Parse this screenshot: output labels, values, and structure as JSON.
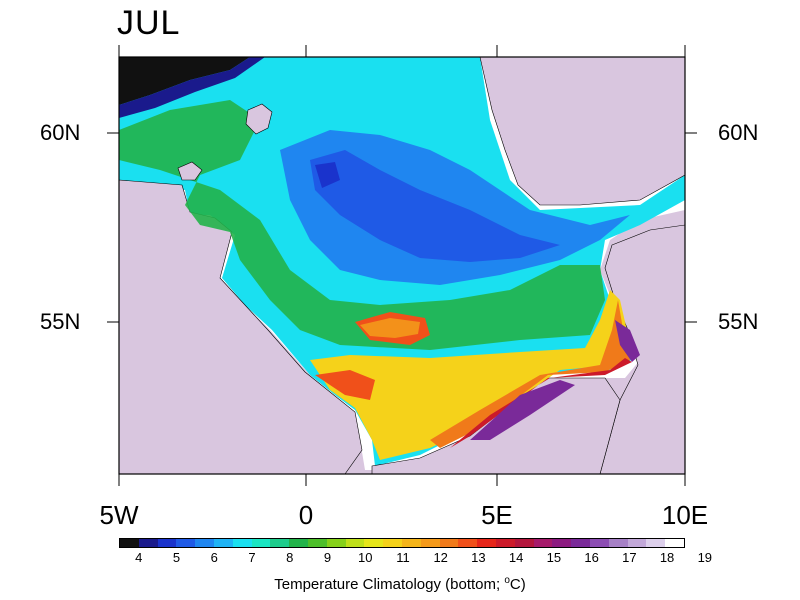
{
  "title": "JUL",
  "axes": {
    "lat_labels": [
      "60N",
      "55N"
    ],
    "lon_labels": [
      "5W",
      "0",
      "5E",
      "10E"
    ]
  },
  "colorbar": {
    "ticks": [
      "4",
      "5",
      "6",
      "7",
      "8",
      "9",
      "10",
      "11",
      "12",
      "13",
      "14",
      "15",
      "16",
      "17",
      "18",
      "19"
    ],
    "colors": [
      "#111111",
      "#1a1a8c",
      "#1a33cc",
      "#1f5ae6",
      "#1f86f0",
      "#1fb3f5",
      "#1ae0f0",
      "#1ae6c3",
      "#1ecc8c",
      "#22b34a",
      "#4dbf2a",
      "#86d11a",
      "#bfe01a",
      "#e6e61a",
      "#f5d21a",
      "#f5b51a",
      "#f59a1a",
      "#f07a1a",
      "#f0501a",
      "#e6261a",
      "#cc1a2a",
      "#b3163d",
      "#a61a6b",
      "#8c1a80",
      "#7a2a99",
      "#8c4db3",
      "#a680c6",
      "#c2a8d9",
      "#ddd0ec",
      "#ffffff"
    ],
    "label_main": "Temperature Climatology (bottom; ",
    "label_unit_sup": "o",
    "label_unit": "C)"
  },
  "colors": {
    "land": "#d9c6df",
    "ocean_cold": "#1a6ee6",
    "ocean_mid": "#1ae0f0",
    "ocean_warm": "#f0501a"
  }
}
